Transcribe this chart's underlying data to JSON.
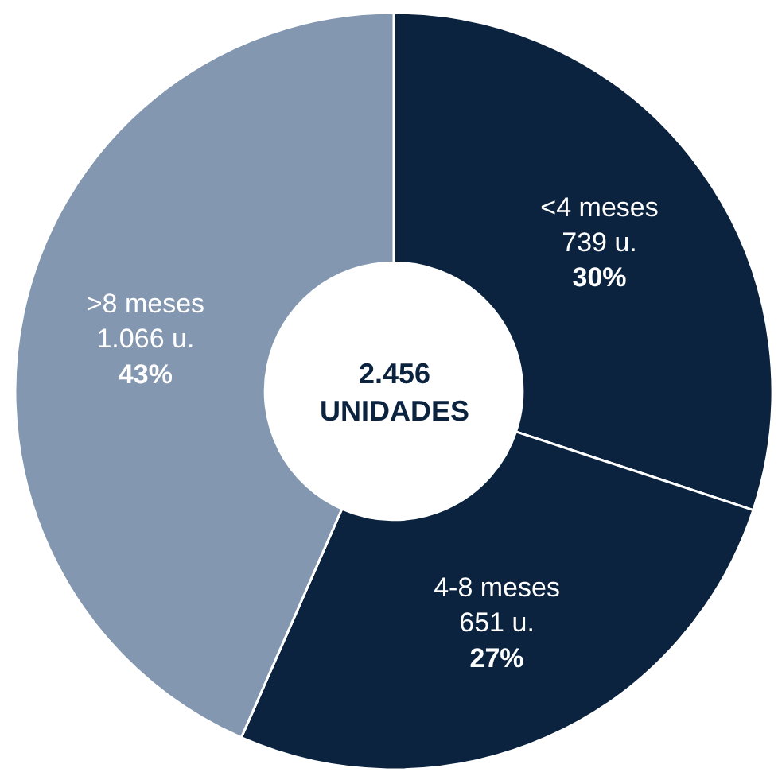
{
  "chart_data": {
    "type": "donut",
    "categories": [
      "<4 meses",
      "4-8 meses",
      ">8 meses"
    ],
    "values": [
      739,
      651,
      1066
    ],
    "value_labels": [
      "739 u.\n30%",
      "651 u.\n27%",
      "1.066 u.\n43%"
    ],
    "colors": [
      "#0b233f",
      "#0b233f",
      "#8497b0"
    ],
    "annotations": [
      "2.456\nUNIDADES"
    ],
    "legend": false
  }
}
